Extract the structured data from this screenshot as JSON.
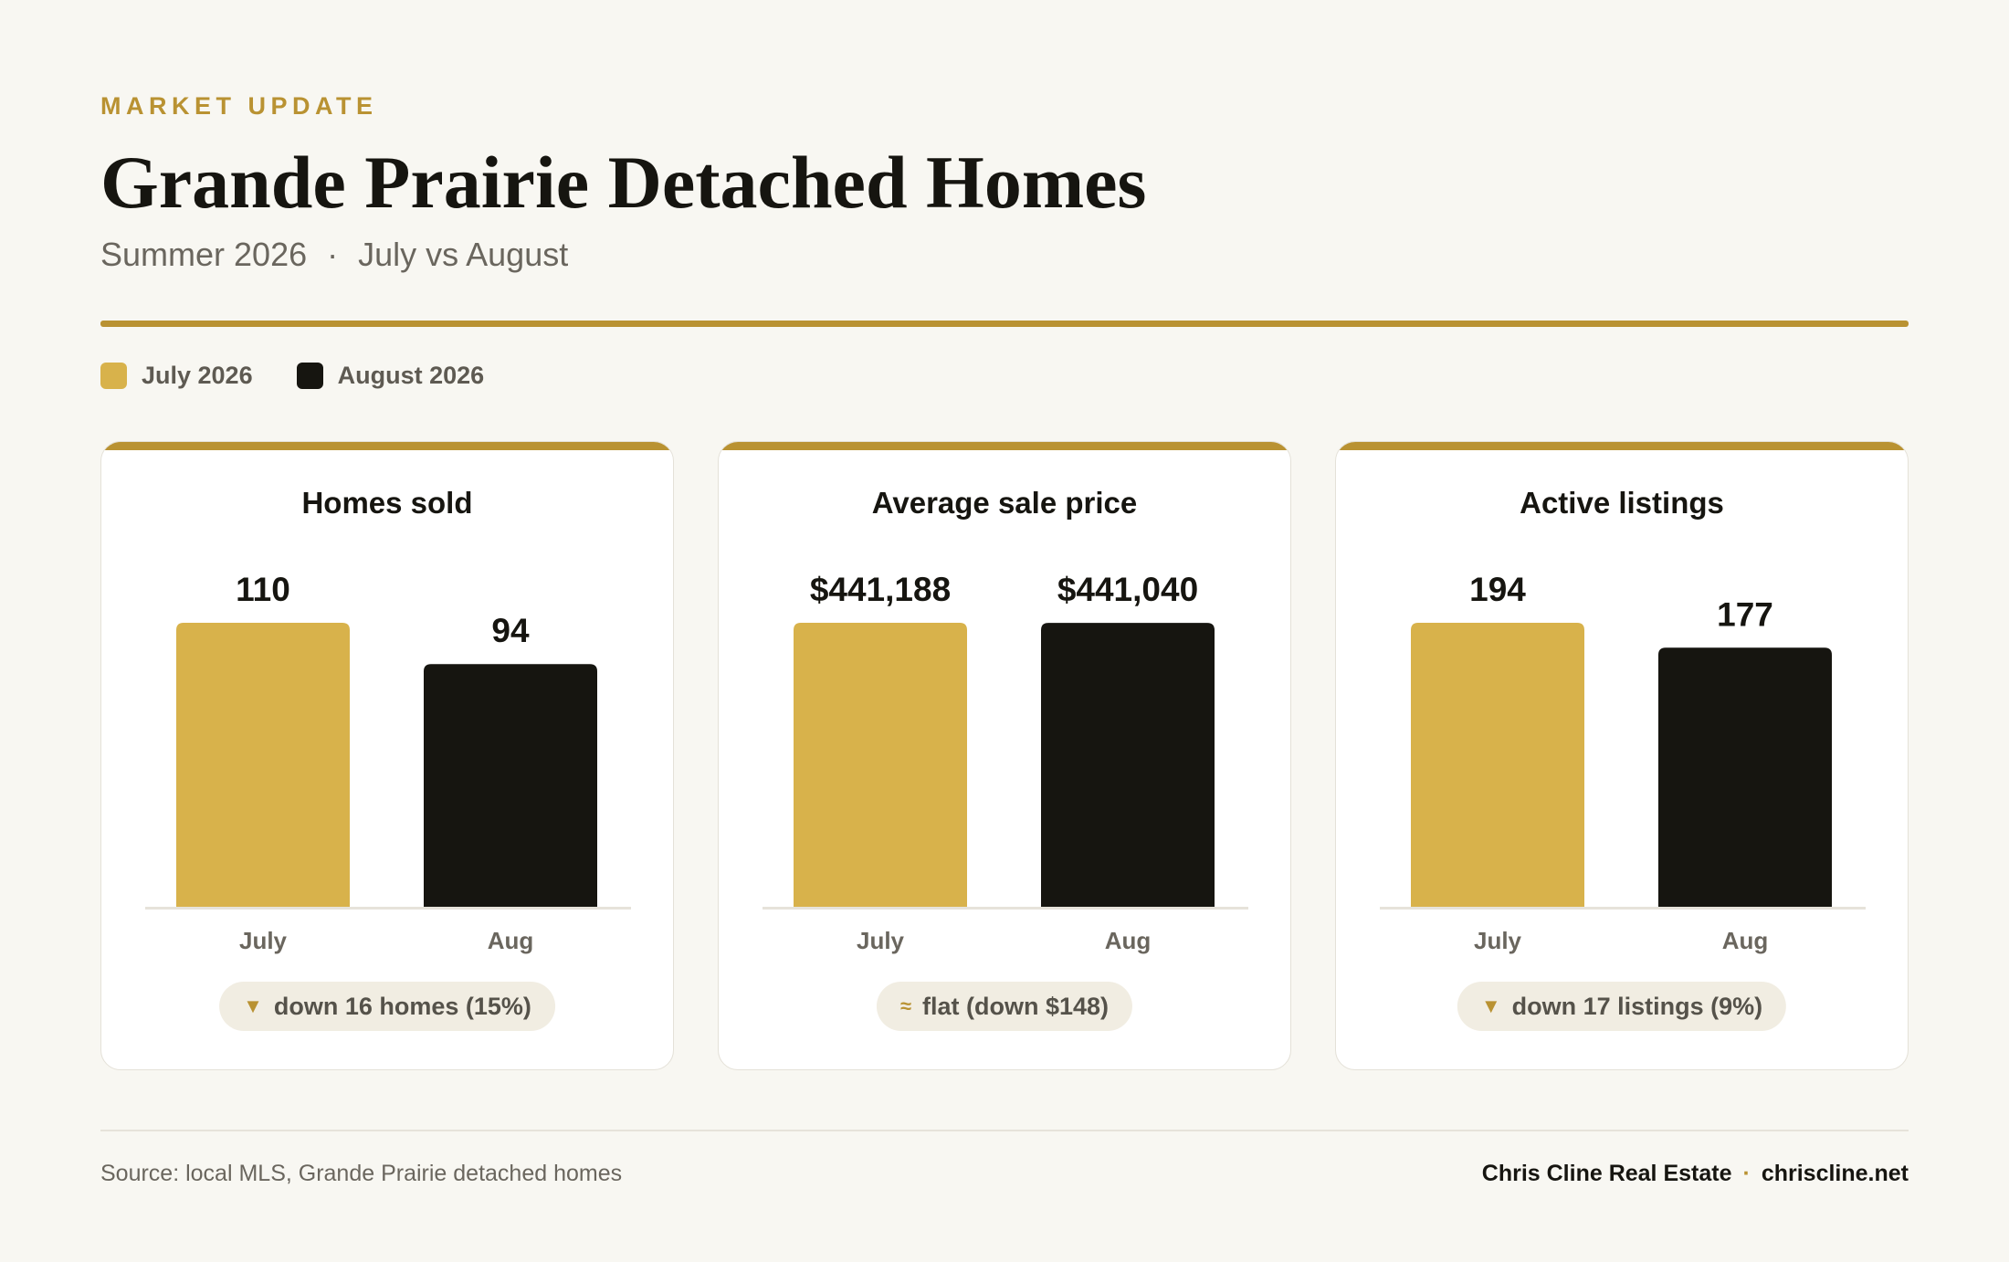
{
  "header": {
    "eyebrow": "MARKET UPDATE",
    "title": "Grande Prairie Detached Homes",
    "subtitle_season": "Summer 2026",
    "subtitle_separator": "·",
    "subtitle_compare": "July vs August"
  },
  "colors": {
    "accent": "#b99232",
    "july": "#d8b24b",
    "august": "#161510",
    "background": "#f8f7f2"
  },
  "legend": [
    {
      "label": "July 2026",
      "color": "#d8b24b"
    },
    {
      "label": "August 2026",
      "color": "#161510"
    }
  ],
  "chart_data": [
    {
      "type": "bar",
      "title": "Homes sold",
      "categories": [
        "July",
        "Aug"
      ],
      "values": [
        110,
        94
      ],
      "value_labels": [
        "110",
        "94"
      ],
      "colors": [
        "#d8b24b",
        "#161510"
      ],
      "change": {
        "icon": "down-triangle-icon",
        "symbol": "▼",
        "text": "down 16 homes (15%)"
      }
    },
    {
      "type": "bar",
      "title": "Average sale price",
      "categories": [
        "July",
        "Aug"
      ],
      "values": [
        441188,
        441040
      ],
      "value_labels": [
        "$441,188",
        "$441,040"
      ],
      "colors": [
        "#d8b24b",
        "#161510"
      ],
      "change": {
        "icon": "approx-equal-icon",
        "symbol": "≈",
        "text": "flat (down $148)"
      }
    },
    {
      "type": "bar",
      "title": "Active listings",
      "categories": [
        "July",
        "Aug"
      ],
      "values": [
        194,
        177
      ],
      "value_labels": [
        "194",
        "177"
      ],
      "colors": [
        "#d8b24b",
        "#161510"
      ],
      "change": {
        "icon": "down-triangle-icon",
        "symbol": "▼",
        "text": "down 17 listings (9%)"
      }
    }
  ],
  "footer": {
    "source": "Source: local MLS, Grande Prairie detached homes",
    "brand": "Chris Cline Real Estate",
    "separator": "·",
    "website": "chriscline.net"
  }
}
